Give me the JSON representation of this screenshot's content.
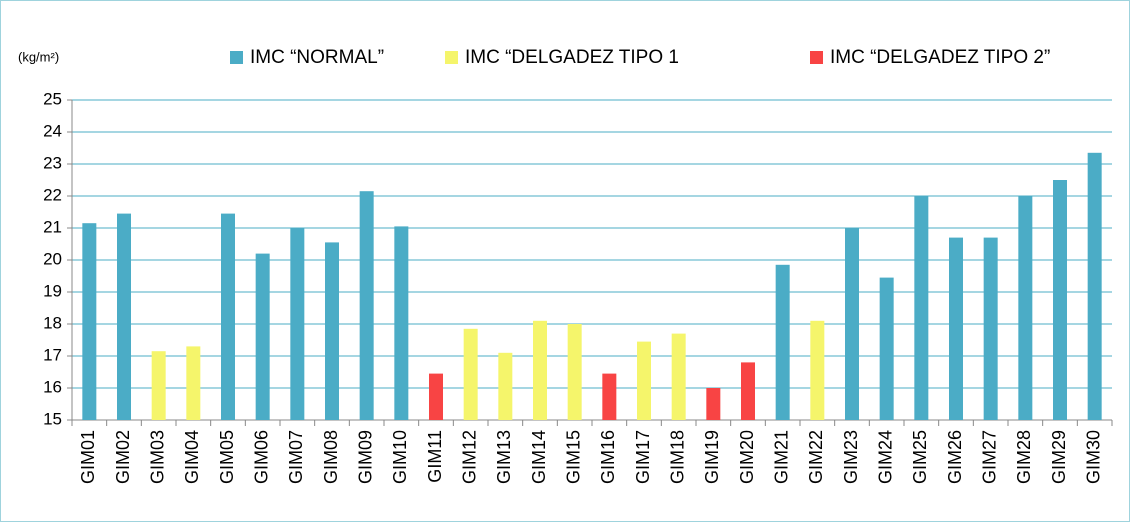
{
  "chart_data": {
    "type": "bar",
    "y_label": "(kg/m²)",
    "categories": [
      "GIM01",
      "GIM02",
      "GIM03",
      "GIM04",
      "GIM05",
      "GIM06",
      "GIM07",
      "GIM08",
      "GIM09",
      "GIM10",
      "GIM11",
      "GIM12",
      "GIM13",
      "GIM14",
      "GIM15",
      "GIM16",
      "GIM17",
      "GIM18",
      "GIM19",
      "GIM20",
      "GIM21",
      "GIM22",
      "GIM23",
      "GIM24",
      "GIM25",
      "GIM26",
      "GIM27",
      "GIM28",
      "GIM29",
      "GIM30"
    ],
    "series": [
      {
        "name": "IMC “NORMAL”",
        "color": "#4bacc6",
        "values": [
          21.15,
          21.45,
          null,
          null,
          21.45,
          20.2,
          21.0,
          20.55,
          22.15,
          21.05,
          null,
          null,
          null,
          null,
          null,
          null,
          null,
          null,
          null,
          null,
          19.85,
          null,
          21.0,
          19.45,
          22.0,
          20.7,
          20.7,
          22.0,
          22.5,
          23.35
        ]
      },
      {
        "name": "IMC “DELGADEZ TIPO 1",
        "color": "#f5f56b",
        "values": [
          null,
          null,
          17.15,
          17.3,
          null,
          null,
          null,
          null,
          null,
          null,
          null,
          17.85,
          17.1,
          18.1,
          18.0,
          null,
          17.45,
          17.7,
          null,
          null,
          null,
          18.1,
          null,
          null,
          null,
          null,
          null,
          null,
          null,
          null
        ]
      },
      {
        "name": "IMC “DELGADEZ TIPO 2”",
        "color": "#f84444",
        "values": [
          null,
          null,
          null,
          null,
          null,
          null,
          null,
          null,
          null,
          null,
          16.45,
          null,
          null,
          null,
          null,
          16.45,
          null,
          null,
          16.0,
          16.8,
          null,
          null,
          null,
          null,
          null,
          null,
          null,
          null,
          null,
          null
        ]
      }
    ],
    "ylim": [
      15,
      25
    ],
    "yticks": [
      15,
      16,
      17,
      18,
      19,
      20,
      21,
      22,
      23,
      24,
      25
    ],
    "grid": true
  }
}
